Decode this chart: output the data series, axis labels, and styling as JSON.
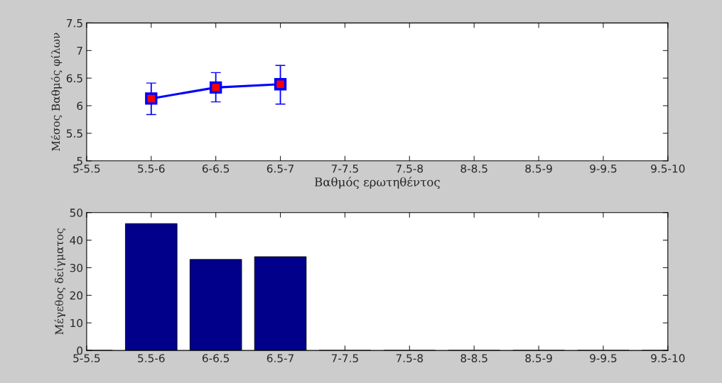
{
  "chart_data": [
    {
      "type": "line",
      "xlabel": "Βαθμός ερωτηθέντος",
      "ylabel": "Μέσος Βαθμός φίλων",
      "categories": [
        "5-5.5",
        "5.5-6",
        "6-6.5",
        "6.5-7",
        "7-7.5",
        "7.5-8",
        "8-8.5",
        "8.5-9",
        "9-9.5",
        "9.5-10"
      ],
      "series": [
        {
          "color": "#0000ff",
          "colors": [
            "#ff0000",
            "#ff0000",
            "#ff0000",
            "#ff0000",
            "#ff0000",
            "#ff0000",
            "#ff0000",
            "#ff0000",
            "#ff0000",
            "#ff0000"
          ],
          "values": [
            null,
            6.13,
            6.33,
            6.39,
            null,
            null,
            null,
            null,
            null,
            null
          ],
          "errors": [
            null,
            [
              5.84,
              6.41
            ],
            [
              6.07,
              6.6
            ],
            [
              6.03,
              6.73
            ],
            null,
            null,
            null,
            null,
            null,
            null
          ]
        }
      ],
      "marker": "square",
      "line_style": "solid",
      "ylim": [
        5,
        7.5
      ],
      "yticks": [
        5,
        5.5,
        6,
        6.5,
        7,
        7.5
      ],
      "grid": false,
      "legend": false
    },
    {
      "type": "bar",
      "ylabel": "Μέγεθος δείγματος",
      "categories": [
        "5-5.5",
        "5.5-6",
        "6-6.5",
        "6.5-7",
        "7-7.5",
        "7.5-8",
        "8-8.5",
        "8.5-9",
        "9-9.5",
        "9.5-10"
      ],
      "series": [
        {
          "color": "#00008b",
          "values": [
            0,
            46,
            33,
            34,
            0,
            0,
            0,
            0,
            0,
            0
          ]
        }
      ],
      "ylim": [
        0,
        50
      ],
      "yticks": [
        0,
        10,
        20,
        30,
        40,
        50
      ],
      "grid": false,
      "legend": false
    }
  ]
}
